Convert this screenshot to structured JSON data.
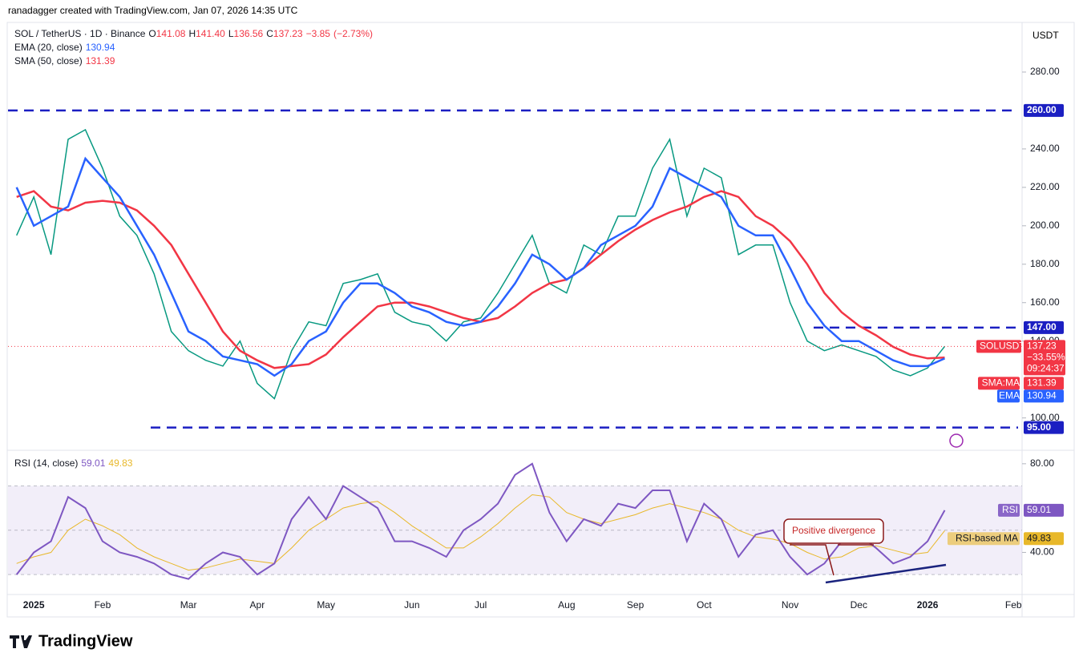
{
  "header": {
    "author_line": "ranadagger created with TradingView.com, Jan 07, 2026 14:35 UTC",
    "currency": "USDT",
    "logo": "TradingView"
  },
  "chart_data": [
    {
      "type": "line",
      "title": "SOL / TetherUS · 1D · Binance",
      "ohlc": [
        {
          "name": "O",
          "value": 141.08,
          "label": "141.08"
        },
        {
          "name": "H",
          "value": 141.4,
          "label": "141.40"
        },
        {
          "name": "L",
          "value": 136.56,
          "label": "136.56"
        },
        {
          "name": "C",
          "value": 137.23,
          "label": "137.23"
        },
        {
          "name": "",
          "value": -3.85,
          "label": "−3.85"
        },
        {
          "name": "",
          "value": -2.73,
          "label": "(−2.73%)"
        }
      ],
      "categories": [
        null,
        "2025",
        null,
        null,
        null,
        "Feb",
        null,
        null,
        null,
        null,
        "Mar",
        null,
        null,
        null,
        "Apr",
        null,
        null,
        null,
        "May",
        null,
        null,
        null,
        null,
        "Jun",
        null,
        null,
        null,
        "Jul",
        null,
        null,
        null,
        null,
        "Aug",
        null,
        null,
        null,
        "Sep",
        null,
        null,
        null,
        "Oct",
        null,
        null,
        null,
        null,
        "Nov",
        null,
        null,
        null,
        "Dec",
        null,
        null,
        null,
        "2026",
        null,
        null,
        null,
        null,
        "Feb"
      ],
      "ylim": [
        84,
        305
      ],
      "yticks": [
        {
          "value": 100,
          "label": "100.00"
        },
        {
          "value": 140,
          "label": "140.00"
        },
        {
          "value": 160,
          "label": "160.00"
        },
        {
          "value": 180,
          "label": "180.00"
        },
        {
          "value": 200,
          "label": "200.00"
        },
        {
          "value": 220,
          "label": "220.00"
        },
        {
          "value": 240,
          "label": "240.00"
        },
        {
          "value": 280,
          "label": "280.00"
        }
      ],
      "levels": [
        {
          "value": 260,
          "label": "260.00"
        },
        {
          "value": 147,
          "label": "147.00"
        },
        {
          "value": 95,
          "label": "95.00"
        }
      ],
      "price_change": {
        "value": -33.55,
        "label": "−33.55%"
      },
      "countdown": "09:24:37",
      "series": [
        {
          "name": "SOLUSDT",
          "color": "#089981",
          "values": [
            195,
            215,
            185,
            245,
            250,
            230,
            205,
            195,
            175,
            145,
            135,
            130,
            127,
            140,
            118,
            110,
            135,
            150,
            148,
            170,
            172,
            175,
            155,
            150,
            148,
            140,
            150,
            152,
            165,
            180,
            195,
            170,
            165,
            190,
            185,
            205,
            205,
            230,
            245,
            205,
            230,
            225,
            185,
            190,
            190,
            160,
            140,
            135,
            138,
            135,
            132,
            125,
            122,
            126,
            137.23,
            null,
            null,
            null,
            null
          ]
        },
        {
          "name": "EMA (20, close)",
          "tag": "EMA",
          "color": "#2962ff",
          "values": [
            220,
            200,
            205,
            210,
            235,
            225,
            215,
            200,
            185,
            165,
            145,
            140,
            132,
            130,
            128,
            122,
            128,
            140,
            145,
            160,
            170,
            170,
            165,
            158,
            155,
            150,
            148,
            150,
            158,
            170,
            185,
            180,
            172,
            178,
            190,
            195,
            200,
            210,
            230,
            225,
            220,
            215,
            200,
            195,
            195,
            178,
            160,
            148,
            140,
            140,
            135,
            130,
            127,
            127,
            130.94,
            null,
            null,
            null,
            null
          ]
        },
        {
          "name": "SMA (50, close)",
          "tag": "SMA:MA",
          "color": "#f23645",
          "values": [
            215,
            218,
            210,
            208,
            212,
            213,
            212,
            208,
            200,
            190,
            175,
            160,
            145,
            135,
            130,
            126,
            127,
            128,
            133,
            142,
            150,
            158,
            160,
            160,
            158,
            155,
            152,
            150,
            152,
            158,
            165,
            170,
            172,
            178,
            185,
            192,
            198,
            203,
            207,
            210,
            215,
            218,
            215,
            205,
            200,
            192,
            180,
            165,
            155,
            148,
            143,
            137,
            133,
            131,
            131.39,
            null,
            null,
            null,
            null
          ]
        }
      ]
    },
    {
      "type": "line",
      "title": "RSI (14, close)",
      "ylim": [
        21,
        85
      ],
      "yticks": [
        {
          "value": 40,
          "label": "40.00"
        },
        {
          "value": 80,
          "label": "80.00"
        }
      ],
      "bands": [
        30,
        50,
        70
      ],
      "annotation": "Positive divergence",
      "series": [
        {
          "name": "RSI",
          "color": "#7e57c2",
          "values": [
            30,
            40,
            45,
            65,
            60,
            45,
            40,
            38,
            35,
            30,
            28,
            35,
            40,
            38,
            30,
            35,
            55,
            65,
            55,
            70,
            65,
            60,
            45,
            45,
            42,
            38,
            50,
            55,
            62,
            75,
            80,
            58,
            45,
            55,
            52,
            62,
            60,
            68,
            68,
            45,
            62,
            55,
            38,
            48,
            50,
            38,
            30,
            35,
            45,
            48,
            42,
            35,
            38,
            45,
            59.01,
            null,
            null,
            null,
            null
          ]
        },
        {
          "name": "RSI-based MA",
          "color": "#e8b82a",
          "values": [
            35,
            38,
            40,
            50,
            55,
            52,
            48,
            42,
            38,
            35,
            32,
            33,
            35,
            37,
            36,
            35,
            42,
            50,
            55,
            60,
            62,
            63,
            58,
            52,
            47,
            42,
            42,
            47,
            53,
            60,
            66,
            65,
            58,
            55,
            53,
            55,
            57,
            60,
            62,
            60,
            58,
            55,
            50,
            47,
            46,
            44,
            40,
            37,
            38,
            42,
            43,
            41,
            39,
            40,
            49.83,
            null,
            null,
            null,
            null
          ]
        }
      ]
    }
  ]
}
